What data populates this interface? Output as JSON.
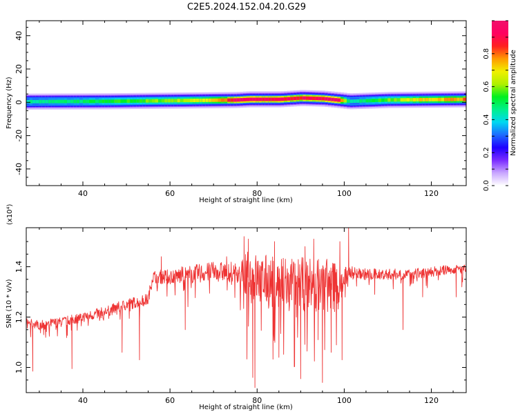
{
  "title": "C2E5.2024.152.04.20.G29",
  "colors": {
    "snr_line": "#ee3333",
    "axis": "#000000",
    "background": "#ffffff"
  },
  "chart_data": [
    {
      "type": "heatmap",
      "name_on_chart": "",
      "xlabel": "Height of straight line (km)",
      "ylabel": "Frequency (Hz)",
      "xlim": [
        27,
        128
      ],
      "ylim": [
        -50,
        49
      ],
      "xticks": [
        40,
        60,
        80,
        100,
        120
      ],
      "yticks": [
        -40,
        -20,
        0,
        20,
        40
      ],
      "colorbar": {
        "label": "Normalized spectral amplitude",
        "range": [
          0.0,
          1.0
        ],
        "ticks": [
          0.0,
          0.2,
          0.4,
          0.6,
          0.8
        ],
        "colormap": [
          "#ffffff",
          "#c9a6ff",
          "#7a2cff",
          "#1d00ff",
          "#1c6bff",
          "#00d8f0",
          "#00f08c",
          "#00f020",
          "#b0f000",
          "#f0f000",
          "#ff9a00",
          "#ff2020",
          "#ff0060",
          "#f0106a"
        ]
      },
      "band": {
        "center_freq_hz": [
          [
            27,
            0.4
          ],
          [
            45,
            0.6
          ],
          [
            60,
            1.0
          ],
          [
            75,
            1.4
          ],
          [
            78,
            1.8
          ],
          [
            85,
            1.8
          ],
          [
            90,
            2.6
          ],
          [
            95,
            2.2
          ],
          [
            99,
            1.2
          ],
          [
            101,
            0.6
          ],
          [
            110,
            1.4
          ],
          [
            128,
            1.8
          ]
        ],
        "halfwidth_hz": 3.2,
        "peak_amplitude": [
          [
            27,
            0.45
          ],
          [
            40,
            0.5
          ],
          [
            55,
            0.58
          ],
          [
            65,
            0.65
          ],
          [
            72,
            0.8
          ],
          [
            76,
            0.95
          ],
          [
            90,
            0.9
          ],
          [
            98,
            0.95
          ],
          [
            101,
            0.45
          ],
          [
            108,
            0.55
          ],
          [
            118,
            0.72
          ],
          [
            128,
            0.8
          ]
        ]
      }
    },
    {
      "type": "line",
      "xlabel": "Height of straight line (km)",
      "ylabel": "SNR (10 * v/v)",
      "y_multiplier": "(x10⁴)",
      "xlim": [
        27,
        128
      ],
      "ylim": [
        0.9,
        1.555
      ],
      "xticks": [
        40,
        60,
        80,
        100,
        120
      ],
      "yticks": [
        1.0,
        1.2,
        1.4
      ],
      "ytick_labels": [
        "1.0",
        "1.2",
        "1.4"
      ],
      "series": [
        {
          "trend": [
            [
              27,
              1.18
            ],
            [
              30,
              1.17
            ],
            [
              35,
              1.18
            ],
            [
              40,
              1.2
            ],
            [
              45,
              1.22
            ],
            [
              50,
              1.25
            ],
            [
              55,
              1.27
            ],
            [
              56,
              1.36
            ],
            [
              60,
              1.36
            ],
            [
              65,
              1.37
            ],
            [
              70,
              1.38
            ],
            [
              75,
              1.38
            ],
            [
              80,
              1.35
            ],
            [
              85,
              1.33
            ],
            [
              90,
              1.33
            ],
            [
              95,
              1.33
            ],
            [
              99,
              1.32
            ],
            [
              101,
              1.38
            ],
            [
              105,
              1.37
            ],
            [
              110,
              1.37
            ],
            [
              115,
              1.37
            ],
            [
              120,
              1.38
            ],
            [
              125,
              1.39
            ],
            [
              128,
              1.39
            ]
          ],
          "noise_amplitude": [
            [
              27,
              0.03
            ],
            [
              55,
              0.04
            ],
            [
              63,
              0.06
            ],
            [
              76,
              0.07
            ],
            [
              78,
              0.18
            ],
            [
              98,
              0.18
            ],
            [
              101,
              0.04
            ],
            [
              128,
              0.03
            ]
          ],
          "spikes": [
            [
              28.5,
              0.985
            ],
            [
              31,
              1.13
            ],
            [
              37.5,
              0.995
            ],
            [
              49,
              1.06
            ],
            [
              53,
              1.03
            ],
            [
              55,
              1.28
            ],
            [
              58,
              1.44
            ],
            [
              63.5,
              1.15
            ],
            [
              73,
              1.44
            ],
            [
              75,
              1.39
            ],
            [
              77,
              1.52
            ],
            [
              78,
              1.51
            ],
            [
              79,
              0.96
            ],
            [
              79.5,
              0.92
            ],
            [
              80,
              1.38
            ],
            [
              84,
              1.5
            ],
            [
              85,
              1.04
            ],
            [
              86.5,
              1.43
            ],
            [
              88,
              1.43
            ],
            [
              89,
              1.2
            ],
            [
              90,
              0.955
            ],
            [
              91,
              1.48
            ],
            [
              92,
              1.35
            ],
            [
              93,
              1.51
            ],
            [
              94,
              1.11
            ],
            [
              95,
              0.94
            ],
            [
              95.5,
              1.16
            ],
            [
              97,
              1.06
            ],
            [
              98,
              1.3
            ],
            [
              99,
              1.5
            ],
            [
              99.5,
              1.03
            ],
            [
              101,
              1.555
            ],
            [
              102,
              1.35
            ],
            [
              107,
              1.29
            ],
            [
              113.5,
              1.15
            ],
            [
              118,
              1.28
            ],
            [
              125.7,
              1.28
            ],
            [
              127,
              1.32
            ]
          ]
        }
      ]
    }
  ]
}
